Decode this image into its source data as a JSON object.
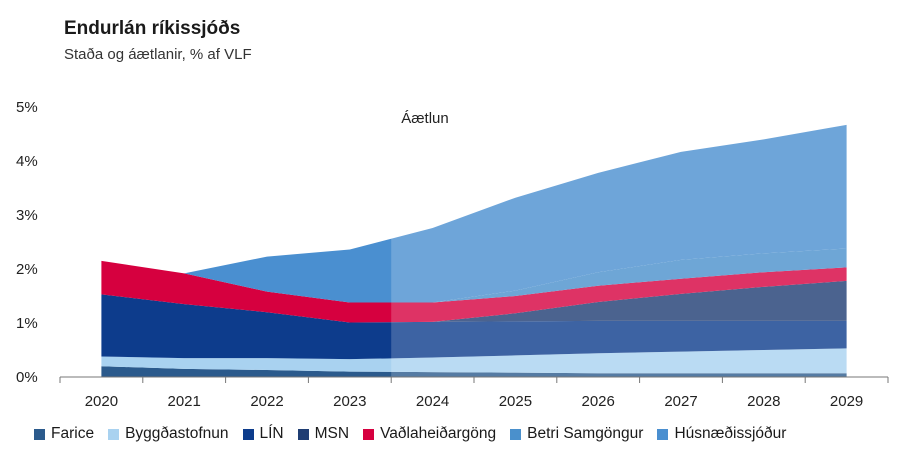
{
  "chart_data": {
    "type": "area",
    "title": "Endurlán ríkissjóðs",
    "subtitle": "Staða og áætlanir, % af VLF",
    "forecast_label": "Áætlun",
    "forecast_start": 2023.5,
    "x": [
      2020,
      2021,
      2022,
      2023,
      2024,
      2025,
      2026,
      2027,
      2028,
      2029
    ],
    "x_tick_labels": [
      "2020",
      "2021",
      "2022",
      "2023",
      "2024",
      "2025",
      "2026",
      "2027",
      "2028",
      "2029"
    ],
    "y_ticks": [
      0,
      1,
      2,
      3,
      4,
      5
    ],
    "y_tick_labels": [
      "0%",
      "1%",
      "2%",
      "3%",
      "4%",
      "5%"
    ],
    "ylim": [
      0,
      5
    ],
    "grid": false,
    "legend_position": "bottom",
    "series": [
      {
        "name": "Farice",
        "color": "#2b5a8c",
        "values": [
          0.2,
          0.15,
          0.13,
          0.1,
          0.09,
          0.08,
          0.07,
          0.07,
          0.07,
          0.07
        ]
      },
      {
        "name": "Byggðastofnun",
        "color": "#a9d2f0",
        "values": [
          0.18,
          0.2,
          0.22,
          0.23,
          0.27,
          0.32,
          0.37,
          0.4,
          0.43,
          0.46
        ]
      },
      {
        "name": "LÍN",
        "color": "#0d3c8c",
        "values": [
          1.15,
          1.0,
          0.85,
          0.68,
          0.66,
          0.63,
          0.6,
          0.57,
          0.54,
          0.51
        ]
      },
      {
        "name": "MSN",
        "color": "#1f3d73",
        "values": [
          0.0,
          0.0,
          0.0,
          0.0,
          0.0,
          0.15,
          0.35,
          0.5,
          0.63,
          0.74
        ]
      },
      {
        "name": "Vaðlaheiðargöng",
        "color": "#d6003f",
        "values": [
          0.62,
          0.57,
          0.38,
          0.37,
          0.36,
          0.32,
          0.3,
          0.28,
          0.27,
          0.25
        ]
      },
      {
        "name": "Betri Samgöngur",
        "color": "#4a90cc",
        "values": [
          0.0,
          0.0,
          0.0,
          0.0,
          0.0,
          0.1,
          0.25,
          0.35,
          0.35,
          0.35
        ]
      },
      {
        "name": "Húsnæðissjóður",
        "color": "#4a8fd0",
        "values": [
          0.0,
          0.0,
          0.65,
          0.98,
          1.38,
          1.72,
          1.84,
          2.0,
          2.11,
          2.29
        ]
      }
    ]
  }
}
